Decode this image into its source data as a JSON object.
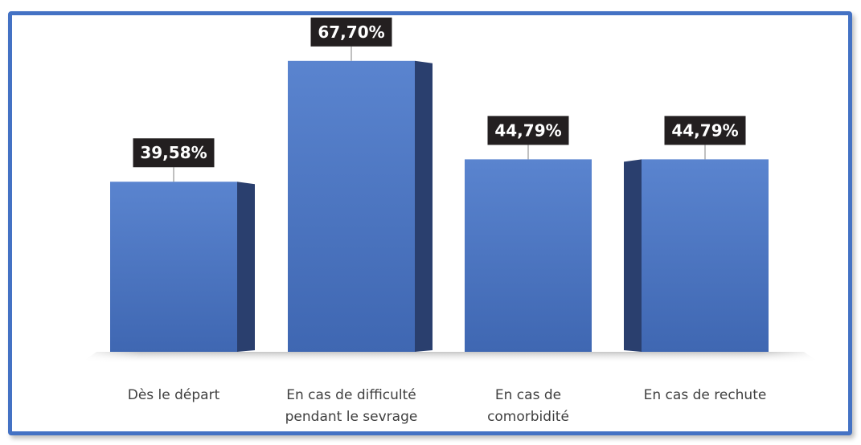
{
  "chart_data": {
    "type": "bar",
    "title": "",
    "xlabel": "",
    "ylabel": "",
    "ylim": [
      0,
      80
    ],
    "grid": false,
    "legend": "none",
    "categories": [
      [
        "Dès le départ"
      ],
      [
        "En cas de difficulté",
        "pendant le sevrage"
      ],
      [
        "En cas de",
        "comorbidité"
      ],
      [
        "En cas de rechute"
      ]
    ],
    "values": [
      39.58,
      67.7,
      44.79,
      44.79
    ],
    "data_labels": [
      "39,58%",
      "67,70%",
      "44,79%",
      "44,79%"
    ],
    "colors": {
      "bar_front": "#4a74c0",
      "bar_side": "#2a3f6e",
      "label_bg": "#231f20",
      "frame_border": "#4472c4"
    }
  }
}
